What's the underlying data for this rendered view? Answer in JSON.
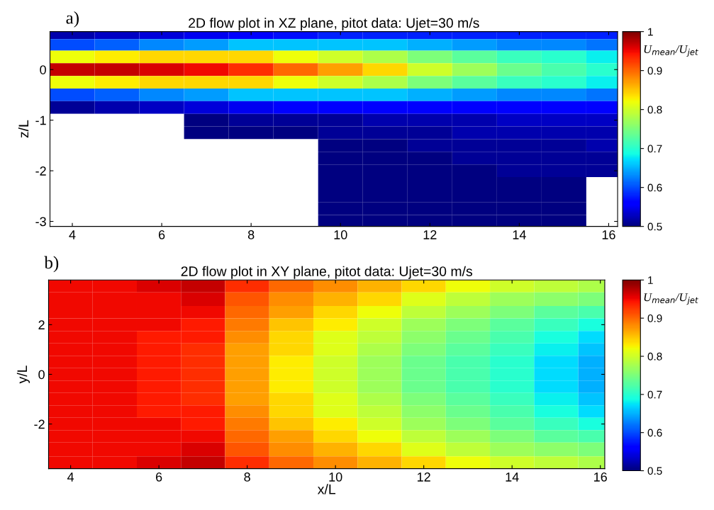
{
  "chart_data": [
    {
      "type": "heatmap",
      "title": "2D flow plot in XZ plane, pitot data: Ujet=30 m/s",
      "ylabel": "z/L",
      "clabel": "U$_{mean}$/U$_{jet}$",
      "annotations": [
        "a)"
      ],
      "tick_labels": true,
      "x": [
        4,
        5,
        6,
        7,
        8,
        9,
        10,
        11,
        12,
        13,
        14,
        15,
        16
      ],
      "y": [
        0.7,
        0.5,
        0.25,
        0,
        -0.25,
        -0.5,
        -0.75,
        -1,
        -1.25,
        -1.5,
        -1.75,
        -2,
        -2.25,
        -2.5,
        -2.75,
        -3
      ],
      "cells": [
        [
          0.52,
          0.53,
          0.54,
          0.55,
          0.56,
          0.57,
          0.58,
          0.58,
          0.58,
          0.58,
          0.58,
          0.58,
          0.58
        ],
        [
          0.6,
          0.61,
          0.63,
          0.64,
          0.66,
          0.66,
          0.66,
          0.66,
          0.65,
          0.64,
          0.63,
          0.63,
          0.62
        ],
        [
          0.82,
          0.83,
          0.84,
          0.84,
          0.84,
          0.82,
          0.8,
          0.78,
          0.75,
          0.73,
          0.71,
          0.7,
          0.68
        ],
        [
          0.97,
          0.97,
          0.96,
          0.95,
          0.93,
          0.9,
          0.87,
          0.84,
          0.8,
          0.77,
          0.74,
          0.72,
          0.7
        ],
        [
          0.82,
          0.83,
          0.84,
          0.84,
          0.84,
          0.82,
          0.8,
          0.78,
          0.75,
          0.73,
          0.71,
          0.7,
          0.68
        ],
        [
          0.6,
          0.61,
          0.63,
          0.64,
          0.66,
          0.66,
          0.66,
          0.66,
          0.65,
          0.64,
          0.63,
          0.63,
          0.62
        ],
        [
          0.51,
          0.52,
          0.53,
          0.54,
          0.55,
          0.56,
          0.56,
          0.56,
          0.56,
          0.56,
          0.56,
          0.56,
          0.56
        ],
        [
          null,
          null,
          null,
          0.5,
          0.51,
          0.51,
          0.51,
          0.52,
          0.52,
          0.52,
          0.53,
          0.53,
          0.53
        ],
        [
          null,
          null,
          null,
          0.5,
          0.5,
          0.5,
          0.51,
          0.51,
          0.51,
          0.52,
          0.52,
          0.52,
          0.52
        ],
        [
          null,
          null,
          null,
          null,
          null,
          null,
          0.5,
          0.5,
          0.51,
          0.51,
          0.51,
          0.51,
          0.52
        ],
        [
          null,
          null,
          null,
          null,
          null,
          null,
          0.5,
          0.5,
          0.5,
          0.51,
          0.51,
          0.51,
          0.51
        ],
        [
          null,
          null,
          null,
          null,
          null,
          null,
          0.5,
          0.5,
          0.5,
          0.5,
          0.51,
          0.51,
          0.51
        ],
        [
          null,
          null,
          null,
          null,
          null,
          null,
          0.5,
          0.5,
          0.5,
          0.5,
          0.5,
          0.5,
          null
        ],
        [
          null,
          null,
          null,
          null,
          null,
          null,
          0.5,
          0.5,
          0.5,
          0.5,
          0.5,
          0.5,
          null
        ],
        [
          null,
          null,
          null,
          null,
          null,
          null,
          0.5,
          0.5,
          0.5,
          0.5,
          0.5,
          0.5,
          null
        ],
        [
          null,
          null,
          null,
          null,
          null,
          null,
          0.5,
          0.5,
          0.5,
          0.5,
          0.5,
          0.5,
          null
        ]
      ],
      "xlim": [
        3.5,
        16.2
      ],
      "xticks": [
        4,
        6,
        8,
        10,
        12,
        14,
        16
      ],
      "ylim": [
        -3.1,
        0.75
      ],
      "yticks": [
        -3,
        -2,
        -1,
        0
      ],
      "clim": [
        0.5,
        1
      ],
      "cticks": [
        0.5,
        0.6,
        0.7,
        0.8,
        0.9,
        1
      ],
      "grid": false
    },
    {
      "type": "heatmap",
      "title": "2D flow plot in XY plane, pitot data: Ujet=30 m/s",
      "xlabel": "x/L",
      "ylabel": "y/L",
      "clabel": "U$_{mean}$/U$_{jet}$",
      "annotations": [
        "b)"
      ],
      "x": [
        4,
        5,
        6,
        7,
        8,
        9,
        10,
        11,
        12,
        13,
        14,
        15,
        16
      ],
      "y": [
        3.6,
        3,
        2.5,
        2,
        1.5,
        1,
        0.5,
        0,
        -0.5,
        -1,
        -1.5,
        -2,
        -2.5,
        -3,
        -3.6
      ],
      "cells": [
        [
          0.95,
          0.95,
          0.96,
          0.97,
          0.93,
          0.9,
          0.88,
          0.86,
          0.84,
          0.82,
          0.8,
          0.79,
          0.78
        ],
        [
          0.95,
          0.95,
          0.95,
          0.96,
          0.91,
          0.88,
          0.86,
          0.84,
          0.81,
          0.79,
          0.77,
          0.76,
          0.75
        ],
        [
          0.95,
          0.95,
          0.95,
          0.95,
          0.9,
          0.87,
          0.84,
          0.82,
          0.79,
          0.77,
          0.75,
          0.73,
          0.72
        ],
        [
          0.95,
          0.95,
          0.95,
          0.94,
          0.89,
          0.85,
          0.83,
          0.8,
          0.77,
          0.75,
          0.73,
          0.71,
          0.69
        ],
        [
          0.95,
          0.95,
          0.94,
          0.94,
          0.88,
          0.84,
          0.81,
          0.79,
          0.76,
          0.74,
          0.72,
          0.69,
          0.67
        ],
        [
          0.95,
          0.95,
          0.94,
          0.93,
          0.87,
          0.84,
          0.81,
          0.78,
          0.75,
          0.73,
          0.71,
          0.68,
          0.66
        ],
        [
          0.95,
          0.95,
          0.94,
          0.93,
          0.87,
          0.83,
          0.8,
          0.77,
          0.74,
          0.72,
          0.7,
          0.67,
          0.65
        ],
        [
          0.95,
          0.95,
          0.94,
          0.93,
          0.87,
          0.83,
          0.8,
          0.77,
          0.74,
          0.72,
          0.7,
          0.67,
          0.65
        ],
        [
          0.95,
          0.95,
          0.94,
          0.93,
          0.87,
          0.83,
          0.8,
          0.77,
          0.74,
          0.72,
          0.7,
          0.67,
          0.65
        ],
        [
          0.95,
          0.95,
          0.94,
          0.93,
          0.87,
          0.84,
          0.81,
          0.78,
          0.75,
          0.73,
          0.71,
          0.68,
          0.66
        ],
        [
          0.95,
          0.95,
          0.94,
          0.94,
          0.88,
          0.84,
          0.81,
          0.79,
          0.76,
          0.74,
          0.72,
          0.69,
          0.67
        ],
        [
          0.95,
          0.95,
          0.95,
          0.94,
          0.89,
          0.85,
          0.83,
          0.8,
          0.77,
          0.75,
          0.73,
          0.71,
          0.69
        ],
        [
          0.95,
          0.95,
          0.95,
          0.95,
          0.9,
          0.87,
          0.84,
          0.82,
          0.79,
          0.77,
          0.75,
          0.73,
          0.72
        ],
        [
          0.95,
          0.95,
          0.95,
          0.96,
          0.91,
          0.88,
          0.86,
          0.84,
          0.81,
          0.79,
          0.77,
          0.76,
          0.75
        ],
        [
          0.95,
          0.95,
          0.96,
          0.97,
          0.93,
          0.9,
          0.88,
          0.86,
          0.84,
          0.82,
          0.8,
          0.79,
          0.78
        ]
      ],
      "xlim": [
        3.5,
        16.1
      ],
      "xticks": [
        4,
        6,
        8,
        10,
        12,
        14,
        16
      ],
      "ylim": [
        -3.8,
        3.8
      ],
      "yticks": [
        -2,
        0,
        2
      ],
      "clim": [
        0.5,
        1
      ],
      "cticks": [
        0.5,
        0.6,
        0.7,
        0.8,
        0.9,
        1
      ],
      "grid": false
    }
  ]
}
